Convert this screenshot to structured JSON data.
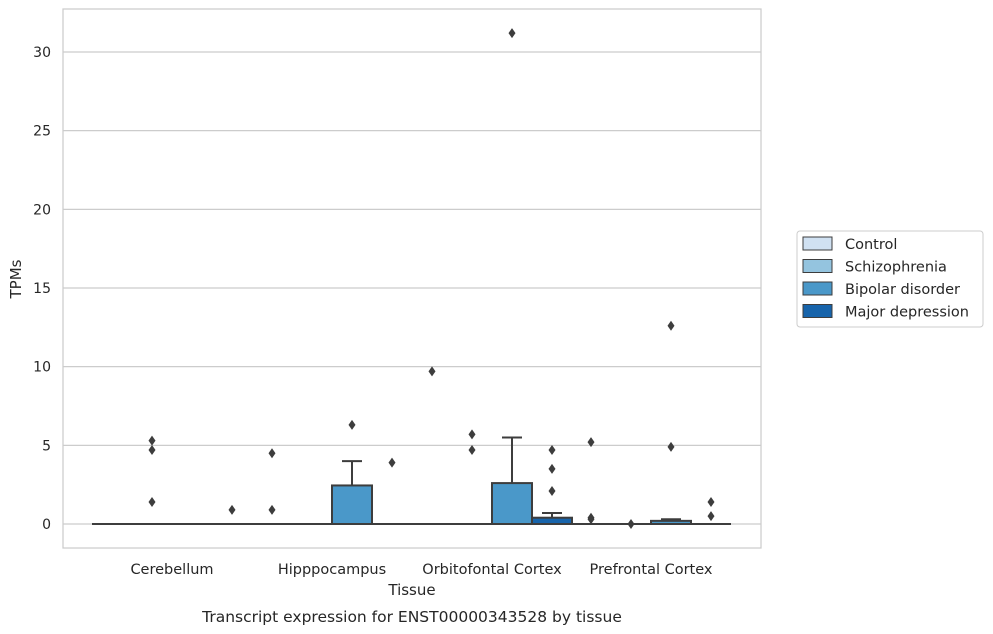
{
  "chart_data": {
    "type": "boxplot",
    "title": "Transcript expression for ENST00000343528 by tissue",
    "xlabel": "Tissue",
    "ylabel": "TPMs",
    "ylim": [
      -1.5,
      32.5
    ],
    "yticks": [
      0,
      5,
      10,
      15,
      20,
      25,
      30
    ],
    "grid": "horizontal",
    "legend_position": "right-center",
    "categories": [
      "Cerebellum",
      "Hipppocampus",
      "Orbitofontal Cortex",
      "Prefrontal Cortex"
    ],
    "series": [
      {
        "name": "Control",
        "color": "#d0e1f2",
        "boxes": [
          {
            "q1": 0,
            "median": 0,
            "q3": 0,
            "whislo": 0,
            "whishi": 0,
            "fliers": []
          },
          {
            "q1": 0,
            "median": 0,
            "q3": 0,
            "whislo": 0,
            "whishi": 0,
            "fliers": [
              4.5,
              0.9
            ]
          },
          {
            "q1": 0,
            "median": 0,
            "q3": 0,
            "whislo": 0,
            "whishi": 0,
            "fliers": [
              9.7
            ]
          },
          {
            "q1": 0,
            "median": 0,
            "q3": 0,
            "whislo": 0,
            "whishi": 0,
            "fliers": [
              5.2,
              0.4,
              0.3
            ]
          }
        ]
      },
      {
        "name": "Schizophrenia",
        "color": "#94c4df",
        "boxes": [
          {
            "q1": 0,
            "median": 0,
            "q3": 0,
            "whislo": 0,
            "whishi": 0,
            "fliers": [
              5.3,
              4.7,
              1.4
            ]
          },
          {
            "q1": 0,
            "median": 0,
            "q3": 0,
            "whislo": 0,
            "whishi": 0,
            "fliers": []
          },
          {
            "q1": 0,
            "median": 0,
            "q3": 0,
            "whislo": 0,
            "whishi": 0,
            "fliers": [
              5.7,
              4.7
            ]
          },
          {
            "q1": 0,
            "median": 0,
            "q3": 0,
            "whislo": 0,
            "whishi": 0,
            "fliers": [
              0.0
            ]
          }
        ]
      },
      {
        "name": "Bipolar disorder",
        "color": "#4a98c9",
        "boxes": [
          {
            "q1": 0,
            "median": 0,
            "q3": 0,
            "whislo": 0,
            "whishi": 0,
            "fliers": []
          },
          {
            "q1": 0,
            "median": 0,
            "q3": 2.45,
            "whislo": 0,
            "whishi": 4.0,
            "fliers": [
              6.3
            ]
          },
          {
            "q1": 0,
            "median": 0,
            "q3": 2.6,
            "whislo": 0,
            "whishi": 5.5,
            "fliers": [
              31.2
            ]
          },
          {
            "q1": 0,
            "median": 0,
            "q3": 0.2,
            "whislo": 0,
            "whishi": 0.3,
            "fliers": [
              12.6,
              4.9
            ]
          }
        ]
      },
      {
        "name": "Major depression",
        "color": "#1764ab",
        "boxes": [
          {
            "q1": 0,
            "median": 0,
            "q3": 0,
            "whislo": 0,
            "whishi": 0,
            "fliers": [
              0.9
            ]
          },
          {
            "q1": 0,
            "median": 0,
            "q3": 0,
            "whislo": 0,
            "whishi": 0,
            "fliers": [
              3.9
            ]
          },
          {
            "q1": 0,
            "median": 0,
            "q3": 0.4,
            "whislo": 0,
            "whishi": 0.7,
            "fliers": [
              4.7,
              3.5,
              2.1
            ]
          },
          {
            "q1": 0,
            "median": 0,
            "q3": 0,
            "whislo": 0,
            "whishi": 0,
            "fliers": [
              1.4,
              0.5
            ]
          }
        ]
      }
    ]
  }
}
